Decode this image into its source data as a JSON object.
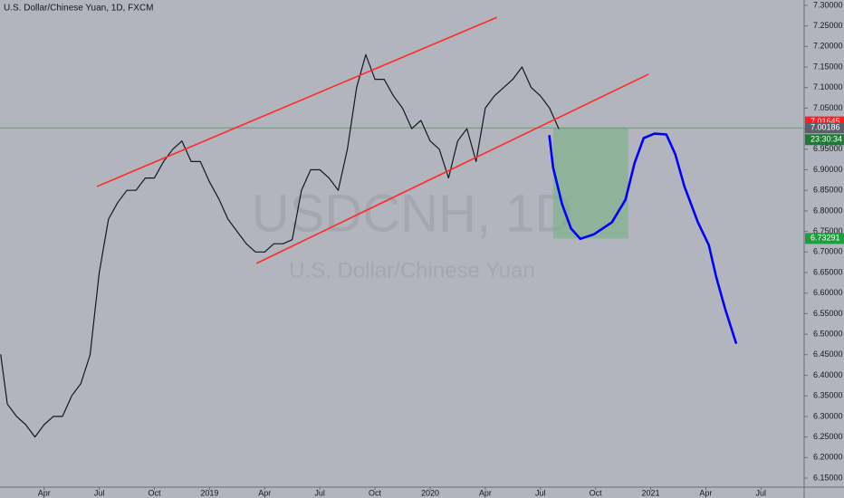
{
  "chart_data": {
    "type": "line",
    "title": "U.S. Dollar/Chinese Yuan, 1D, FXCM",
    "watermark": "USDCNH, 1D",
    "watermark_subtitle": "U.S. Dollar/Chinese Yuan",
    "xlim": [
      0.6,
      44.3
    ],
    "ylim": [
      6.128,
      7.313
    ],
    "grid": false,
    "xticks": [
      {
        "value": 3,
        "label": "Apr"
      },
      {
        "value": 6,
        "label": "Jul"
      },
      {
        "value": 9,
        "label": "Oct"
      },
      {
        "value": 12,
        "label": "2019"
      },
      {
        "value": 15,
        "label": "Apr"
      },
      {
        "value": 18,
        "label": "Jul"
      },
      {
        "value": 21,
        "label": "Oct"
      },
      {
        "value": 24,
        "label": "2020"
      },
      {
        "value": 27,
        "label": "Apr"
      },
      {
        "value": 30,
        "label": "Jul"
      },
      {
        "value": 33,
        "label": "Oct"
      },
      {
        "value": 36,
        "label": "2021"
      },
      {
        "value": 39,
        "label": "Apr"
      },
      {
        "value": 42,
        "label": "Jul"
      }
    ],
    "yticks": [
      {
        "value": 6.15,
        "label": "6.15000"
      },
      {
        "value": 6.2,
        "label": "6.20000"
      },
      {
        "value": 6.25,
        "label": "6.25000"
      },
      {
        "value": 6.3,
        "label": "6.30000"
      },
      {
        "value": 6.35,
        "label": "6.35000"
      },
      {
        "value": 6.4,
        "label": "6.40000"
      },
      {
        "value": 6.45,
        "label": "6.45000"
      },
      {
        "value": 6.5,
        "label": "6.50000"
      },
      {
        "value": 6.55,
        "label": "6.55000"
      },
      {
        "value": 6.6,
        "label": "6.60000"
      },
      {
        "value": 6.65,
        "label": "6.65000"
      },
      {
        "value": 6.7,
        "label": "6.70000"
      },
      {
        "value": 6.75,
        "label": "6.75000"
      },
      {
        "value": 6.8,
        "label": "6.80000"
      },
      {
        "value": 6.85,
        "label": "6.85000"
      },
      {
        "value": 6.9,
        "label": "6.90000"
      },
      {
        "value": 6.95,
        "label": "6.95000"
      },
      {
        "value": 7.0,
        "label": "7.00000"
      },
      {
        "value": 7.05,
        "label": "7.05000"
      },
      {
        "value": 7.1,
        "label": "7.10000"
      },
      {
        "value": 7.15,
        "label": "7.15000"
      },
      {
        "value": 7.2,
        "label": "7.20000"
      },
      {
        "value": 7.25,
        "label": "7.25000"
      },
      {
        "value": 7.3,
        "label": "7.30000"
      }
    ],
    "series": [
      {
        "color": "#131722",
        "width": 1.2,
        "x": [
          0.64,
          1,
          1.5,
          2,
          2.5,
          3,
          3.5,
          4,
          4.5,
          5,
          5.5,
          6,
          6.5,
          7,
          7.5,
          8,
          8.5,
          9,
          9.5,
          10,
          10.5,
          11,
          11.5,
          12,
          12.5,
          13,
          13.5,
          14,
          14.5,
          15,
          15.5,
          16,
          16.5,
          17,
          17.5,
          18,
          18.5,
          19,
          19.5,
          20,
          20.5,
          21,
          21.5,
          22,
          22.5,
          23,
          23.5,
          24,
          24.5,
          25,
          25.5,
          26,
          26.5,
          27,
          27.5,
          28,
          28.5,
          29,
          29.5,
          30,
          30.5,
          31
        ],
        "values": [
          6.45,
          6.33,
          6.3,
          6.28,
          6.25,
          6.28,
          6.3,
          6.3,
          6.35,
          6.38,
          6.45,
          6.65,
          6.78,
          6.82,
          6.85,
          6.85,
          6.88,
          6.88,
          6.92,
          6.95,
          6.97,
          6.92,
          6.92,
          6.87,
          6.83,
          6.78,
          6.75,
          6.72,
          6.7,
          6.7,
          6.72,
          6.72,
          6.73,
          6.85,
          6.9,
          6.9,
          6.88,
          6.85,
          6.95,
          7.1,
          7.18,
          7.12,
          7.12,
          7.08,
          7.05,
          7.0,
          7.02,
          6.97,
          6.95,
          6.88,
          6.97,
          7.0,
          6.92,
          7.05,
          7.08,
          7.1,
          7.12,
          7.15,
          7.1,
          7.08,
          7.05,
          7.0
        ]
      },
      {
        "color": "#ff2a2a",
        "width": 1.6,
        "x": [
          5.9,
          27.6
        ],
        "values": [
          6.86,
          7.27
        ]
      },
      {
        "color": "#ff2a2a",
        "width": 1.6,
        "x": [
          14.58,
          35.86
        ],
        "values": [
          6.673,
          7.132
        ]
      },
      {
        "color": "#0000ff",
        "width": 2.6,
        "x": [
          30.49,
          30.69,
          31.18,
          31.67,
          32.17,
          32.91,
          33.89,
          34.63,
          35.12,
          35.62,
          36.21,
          36.85,
          37.34,
          37.83,
          38.57,
          39.16,
          39.56,
          40.05,
          40.64
        ],
        "values": [
          6.982,
          6.905,
          6.816,
          6.757,
          6.732,
          6.743,
          6.772,
          6.827,
          6.916,
          6.977,
          6.988,
          6.986,
          6.938,
          6.86,
          6.772,
          6.717,
          6.64,
          6.562,
          6.479
        ]
      }
    ],
    "hline": {
      "price": 7.00186,
      "color": "#4caf50"
    },
    "box": {
      "x": [
        30.69,
        34.78
      ],
      "prices": [
        7.00186,
        6.73291
      ],
      "color": "#7fb08a"
    },
    "price_tags": [
      {
        "price": 7.01645,
        "color": "#ff1f1f"
      },
      {
        "price": 7.00186,
        "color": "#5d606b"
      },
      {
        "price": 6.73291,
        "color": "#1e9e3f"
      }
    ],
    "countdown": {
      "text": "23:30:34",
      "color": "#1b7a34"
    }
  }
}
